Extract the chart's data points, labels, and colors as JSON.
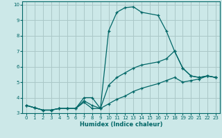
{
  "xlabel": "Humidex (Indice chaleur)",
  "background_color": "#cce8e8",
  "grid_color": "#aac8c8",
  "line_color": "#006666",
  "xlim": [
    -0.5,
    23.5
  ],
  "ylim": [
    3.0,
    10.2
  ],
  "xticks": [
    0,
    1,
    2,
    3,
    4,
    5,
    6,
    7,
    8,
    9,
    10,
    11,
    12,
    13,
    14,
    15,
    16,
    17,
    18,
    19,
    20,
    21,
    22,
    23
  ],
  "yticks": [
    3,
    4,
    5,
    6,
    7,
    8,
    9,
    10
  ],
  "line1_x": [
    0,
    1,
    2,
    3,
    4,
    5,
    6,
    7,
    8,
    9,
    10,
    11,
    12,
    13,
    14,
    16,
    17,
    18,
    19,
    20,
    21,
    22,
    23
  ],
  "line1_y": [
    3.5,
    3.35,
    3.2,
    3.2,
    3.3,
    3.3,
    3.3,
    4.0,
    4.0,
    3.3,
    8.3,
    9.5,
    9.8,
    9.85,
    9.5,
    9.3,
    8.3,
    7.0,
    5.9,
    5.4,
    5.3,
    5.4,
    5.3
  ],
  "line2_x": [
    0,
    1,
    2,
    3,
    4,
    5,
    6,
    7,
    8,
    9,
    10,
    11,
    12,
    13,
    14,
    16,
    17,
    18,
    19,
    20,
    21,
    22,
    23
  ],
  "line2_y": [
    3.5,
    3.35,
    3.2,
    3.2,
    3.3,
    3.3,
    3.3,
    3.8,
    3.5,
    3.3,
    4.8,
    5.3,
    5.6,
    5.9,
    6.1,
    6.3,
    6.5,
    7.0,
    5.9,
    5.4,
    5.3,
    5.4,
    5.3
  ],
  "line3_x": [
    0,
    1,
    2,
    3,
    4,
    5,
    6,
    7,
    8,
    9,
    10,
    11,
    12,
    13,
    14,
    16,
    17,
    18,
    19,
    20,
    21,
    22,
    23
  ],
  "line3_y": [
    3.5,
    3.35,
    3.2,
    3.2,
    3.3,
    3.3,
    3.3,
    3.7,
    3.3,
    3.3,
    3.6,
    3.9,
    4.1,
    4.4,
    4.6,
    4.9,
    5.1,
    5.3,
    5.0,
    5.1,
    5.2,
    5.4,
    5.3
  ]
}
